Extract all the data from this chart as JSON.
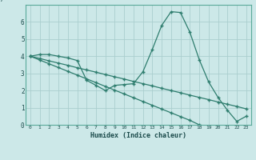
{
  "xlabel": "Humidex (Indice chaleur)",
  "ylabel": "",
  "background_color": "#cce8e8",
  "line_color": "#2e7d6e",
  "grid_color": "#aacece",
  "xlim": [
    -0.5,
    23.5
  ],
  "ylim": [
    0,
    7
  ],
  "yticks": [
    0,
    1,
    2,
    3,
    4,
    5,
    6
  ],
  "xticks": [
    0,
    1,
    2,
    3,
    4,
    5,
    6,
    7,
    8,
    9,
    10,
    11,
    12,
    13,
    14,
    15,
    16,
    17,
    18,
    19,
    20,
    21,
    22,
    23
  ],
  "series1": [
    4.0,
    4.1,
    4.1,
    4.0,
    3.9,
    3.75,
    2.6,
    2.3,
    2.0,
    2.3,
    2.35,
    2.4,
    3.1,
    4.4,
    5.8,
    6.6,
    6.55,
    5.4,
    3.8,
    2.5,
    1.6,
    0.85,
    0.2,
    0.5
  ],
  "series2": [
    4.0,
    3.87,
    3.73,
    3.6,
    3.47,
    3.33,
    3.2,
    3.07,
    2.93,
    2.8,
    2.67,
    2.53,
    2.4,
    2.27,
    2.13,
    2.0,
    1.87,
    1.73,
    1.6,
    1.47,
    1.33,
    1.2,
    1.07,
    0.93
  ],
  "series3": [
    4.0,
    3.78,
    3.56,
    3.34,
    3.12,
    2.9,
    2.68,
    2.46,
    2.24,
    2.02,
    1.8,
    1.58,
    1.36,
    1.14,
    0.92,
    0.7,
    0.48,
    0.26,
    0.0,
    -0.1,
    -0.1,
    -0.1,
    -0.1,
    -0.1
  ]
}
